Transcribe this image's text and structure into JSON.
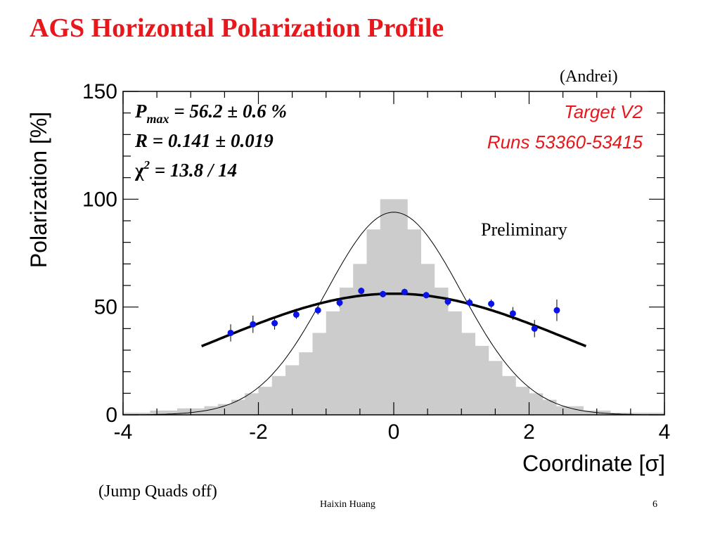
{
  "slide": {
    "title": "AGS Horizontal Polarization Profile",
    "note_top": "(Andrei)",
    "note_bottom": "(Jump Quads off)",
    "author": "Haixin Huang",
    "page": "6"
  },
  "chart_data": {
    "type": "scatter",
    "xlabel": "Coordinate [σ]",
    "ylabel": "Polarization [%]",
    "xlim": [
      -4,
      4
    ],
    "ylim": [
      0,
      150
    ],
    "x_ticks": [
      "-4",
      "-2",
      "0",
      "2",
      "4"
    ],
    "y_ticks": [
      "0",
      "50",
      "100",
      "150"
    ],
    "stats": {
      "pmax": " = 56.2 ± 0.6 %",
      "r": "R =  0.141 ± 0.019",
      "chi2": " = 13.8 / 14"
    },
    "labels": {
      "target": "Target V2",
      "runs": "Runs 53360-53415",
      "preliminary": "Preliminary"
    },
    "colors": {
      "points": "#0a14e6",
      "histogram": "#cccccc",
      "accent": "#e8171b"
    },
    "histogram": {
      "bin_edges": [
        -4,
        -3.6,
        -3.2,
        -2.8,
        -2.6,
        -2.4,
        -2.2,
        -2.0,
        -1.8,
        -1.6,
        -1.4,
        -1.2,
        -1.0,
        -0.8,
        -0.6,
        -0.4,
        -0.2,
        0.2,
        0.4,
        0.6,
        0.8,
        1.0,
        1.2,
        1.4,
        1.6,
        1.8,
        2.0,
        2.2,
        2.4,
        2.8,
        3.2,
        3.6,
        4.0
      ],
      "values": [
        1,
        2,
        3,
        4,
        5,
        7,
        10,
        13,
        18,
        23,
        29,
        38,
        48,
        59,
        70,
        86,
        100,
        86,
        70,
        59,
        48,
        38,
        32,
        25,
        18,
        13,
        10,
        7,
        4,
        2,
        1,
        1
      ]
    },
    "data_points": {
      "x": [
        -2.41,
        -2.08,
        -1.76,
        -1.44,
        -1.12,
        -0.8,
        -0.48,
        -0.16,
        0.16,
        0.48,
        0.8,
        1.12,
        1.44,
        1.76,
        2.08,
        2.41
      ],
      "y": [
        38,
        42,
        42.5,
        46.5,
        48.5,
        52,
        57.5,
        56,
        57,
        55.5,
        52.5,
        52,
        51.5,
        47,
        40,
        48.5
      ],
      "err": [
        4,
        4,
        3,
        2,
        2,
        2,
        1.5,
        1.5,
        1.5,
        1.5,
        2,
        2,
        2,
        3,
        4,
        5
      ]
    },
    "fit_curve": {
      "pmax": 56.2,
      "r": 0.141,
      "x_range": [
        -2.84,
        2.84
      ]
    },
    "beam_profile": {
      "amplitude": 94,
      "sigma": 1
    }
  }
}
